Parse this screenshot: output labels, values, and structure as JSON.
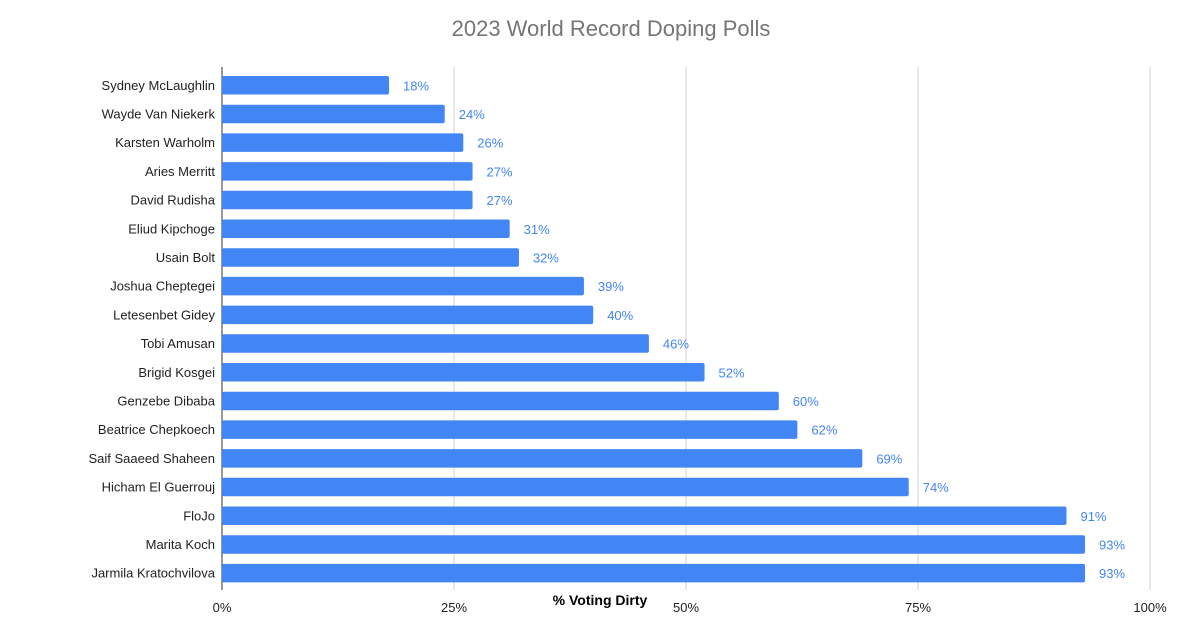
{
  "chart_data": {
    "type": "bar",
    "orientation": "horizontal",
    "title": "2023 World Record Doping Polls",
    "xlabel": "% Voting Dirty",
    "ylabel": "",
    "xlim": [
      0,
      100
    ],
    "x_ticks": [
      "0%",
      "25%",
      "50%",
      "75%",
      "100%"
    ],
    "grid": true,
    "bar_color": "#4285f4",
    "label_color": "#4285f4",
    "categories": [
      "Sydney McLaughlin",
      "Wayde Van Niekerk",
      "Karsten Warholm",
      "Aries Merritt",
      "David Rudisha",
      "Eliud Kipchoge",
      "Usain Bolt",
      "Joshua Cheptegei",
      "Letesenbet Gidey",
      "Tobi Amusan",
      "Brigid Kosgei",
      "Genzebe Dibaba",
      "Beatrice Chepkoech",
      "Saif Saaeed Shaheen",
      "Hicham El Guerrouj",
      "FloJo",
      "Marita Koch",
      "Jarmila Kratochvilova"
    ],
    "values": [
      18,
      24,
      26,
      27,
      27,
      31,
      32,
      39,
      40,
      46,
      52,
      60,
      62,
      69,
      74,
      91,
      93,
      93
    ],
    "data_labels": [
      "18%",
      "24%",
      "26%",
      "27%",
      "27%",
      "31%",
      "32%",
      "39%",
      "40%",
      "46%",
      "52%",
      "60%",
      "62%",
      "69%",
      "74%",
      "91%",
      "93%",
      "93%"
    ]
  }
}
